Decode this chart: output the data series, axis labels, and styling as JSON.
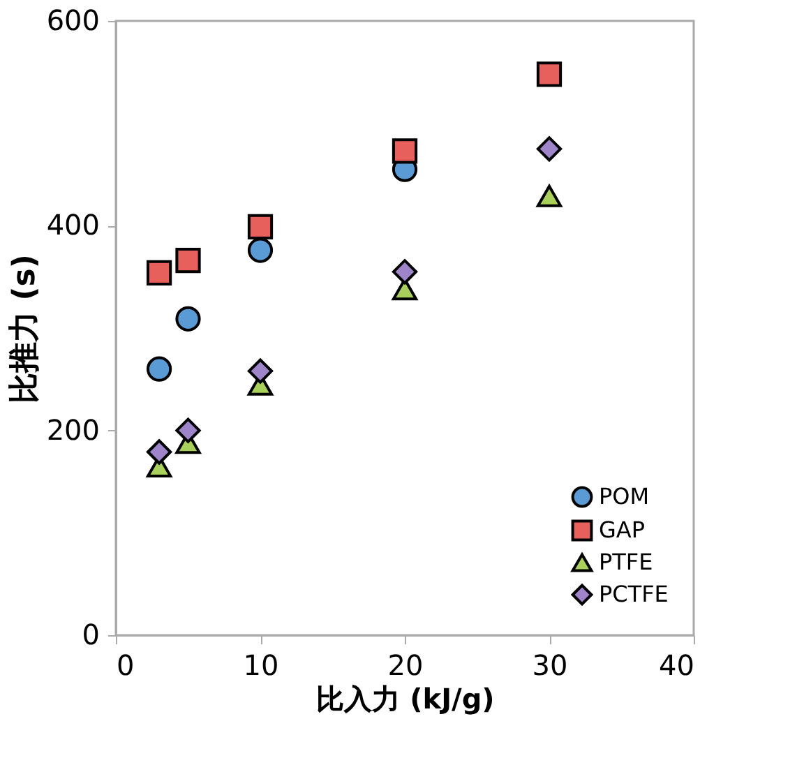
{
  "chart_data": {
    "type": "scatter",
    "xlabel": "比入力 (kJ/g)",
    "ylabel": "比推力 (s)",
    "x": [
      3,
      5,
      10,
      20,
      30
    ],
    "series": [
      {
        "name": "POM",
        "color": "#5b9bd5",
        "marker": "circle",
        "values": [
          260,
          309,
          376,
          455,
          null
        ]
      },
      {
        "name": "GAP",
        "color": "#e8605c",
        "marker": "square",
        "values": [
          354,
          366,
          399,
          473,
          548
        ]
      },
      {
        "name": "PTFE",
        "color": "#a9d05a",
        "marker": "triangle",
        "values": [
          165,
          188,
          245,
          338,
          429
        ]
      },
      {
        "name": "PCTFE",
        "color": "#9e85c9",
        "marker": "diamond",
        "values": [
          179,
          200,
          258,
          355,
          475
        ]
      }
    ],
    "xlim": [
      0,
      40
    ],
    "xticks": [
      0,
      10,
      20,
      30,
      40
    ],
    "ylim": [
      0,
      600
    ],
    "yticks": [
      0,
      200,
      400,
      600
    ],
    "grid": false,
    "legend": "bottom right"
  }
}
